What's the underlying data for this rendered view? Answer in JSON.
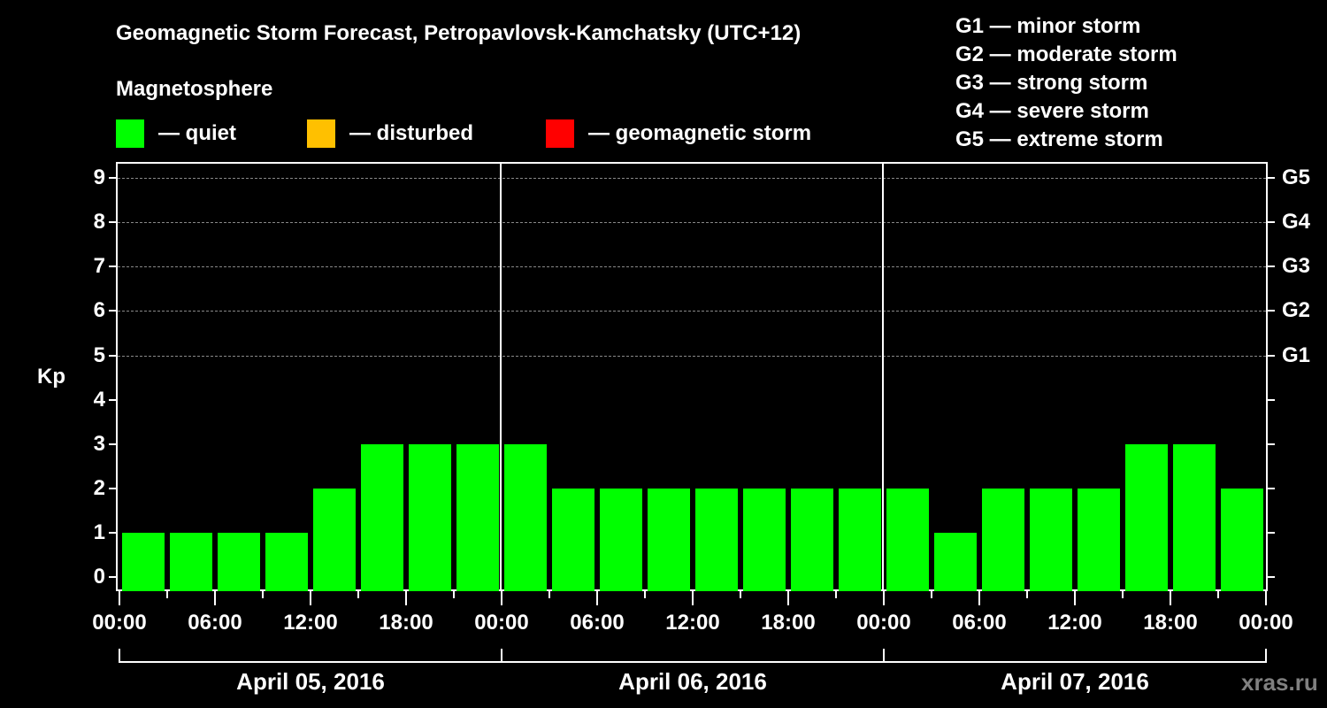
{
  "title": "Geomagnetic Storm Forecast, Petropavlovsk-Kamchatsky (UTC+12)",
  "legend": {
    "heading": "Magnetosphere",
    "items": [
      {
        "label": "— quiet",
        "color": "#00ff00"
      },
      {
        "label": "— disturbed",
        "color": "#ffc000"
      },
      {
        "label": "— geomagnetic storm",
        "color": "#ff0000"
      }
    ],
    "storm_levels": [
      "G1 — minor storm",
      "G2 — moderate storm",
      "G3 — strong storm",
      "G4 — severe storm",
      "G5 — extreme storm"
    ]
  },
  "axes": {
    "ylabel": "Kp",
    "yticks": [
      "0",
      "1",
      "2",
      "3",
      "4",
      "5",
      "6",
      "7",
      "8",
      "9"
    ],
    "right_ticks": [
      {
        "kp": 5,
        "label": "G1"
      },
      {
        "kp": 6,
        "label": "G2"
      },
      {
        "kp": 7,
        "label": "G3"
      },
      {
        "kp": 8,
        "label": "G4"
      },
      {
        "kp": 9,
        "label": "G5"
      }
    ],
    "xticks": [
      "00:00",
      "06:00",
      "12:00",
      "18:00",
      "00:00",
      "06:00",
      "12:00",
      "18:00",
      "00:00",
      "06:00",
      "12:00",
      "18:00",
      "00:00"
    ],
    "days": [
      "April 05, 2016",
      "April 06, 2016",
      "April 07, 2016"
    ]
  },
  "watermark": "xras.ru",
  "chart_data": {
    "type": "bar",
    "title": "Geomagnetic Storm Forecast, Petropavlovsk-Kamchatsky (UTC+12)",
    "xlabel": "",
    "ylabel": "Kp",
    "ylim": [
      0,
      9
    ],
    "grid": "dashed horizontal lines at Kp 5-9",
    "interval_hours": 3,
    "categories": [
      "Apr 05 00:00",
      "Apr 05 03:00",
      "Apr 05 06:00",
      "Apr 05 09:00",
      "Apr 05 12:00",
      "Apr 05 15:00",
      "Apr 05 18:00",
      "Apr 05 21:00",
      "Apr 06 00:00",
      "Apr 06 03:00",
      "Apr 06 06:00",
      "Apr 06 09:00",
      "Apr 06 12:00",
      "Apr 06 15:00",
      "Apr 06 18:00",
      "Apr 06 21:00",
      "Apr 07 00:00",
      "Apr 07 03:00",
      "Apr 07 06:00",
      "Apr 07 09:00",
      "Apr 07 12:00",
      "Apr 07 15:00",
      "Apr 07 18:00",
      "Apr 07 21:00"
    ],
    "values": [
      1,
      1,
      1,
      1,
      2,
      3,
      3,
      3,
      3,
      2,
      2,
      2,
      2,
      2,
      2,
      2,
      2,
      1,
      2,
      2,
      2,
      3,
      3,
      2
    ],
    "bar_color": "#00ff00",
    "legend": [
      "quiet",
      "disturbed",
      "geomagnetic storm"
    ],
    "right_axis": {
      "5": "G1",
      "6": "G2",
      "7": "G3",
      "8": "G4",
      "9": "G5"
    }
  }
}
